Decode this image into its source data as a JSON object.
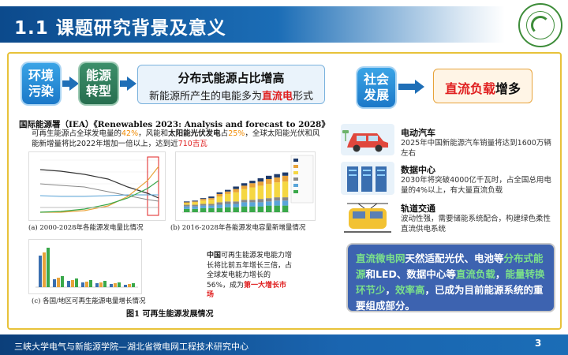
{
  "header": {
    "title": "1.1 课题研究背景及意义"
  },
  "left_flow": {
    "pill1": "环境污染",
    "pill2": "能源转型",
    "box_line1": "分布式能源占比增高",
    "box_line2_a": "新能源所产生的电能多为",
    "box_line2_red": "直流电",
    "box_line2_b": "形式"
  },
  "right_flow": {
    "pill": "社会发展",
    "box_red": "直流负载",
    "box_black": "增多"
  },
  "source": "国际能源署（IEA）《Renewables 2023: Analysis and forecast to 2028》",
  "paragraph": {
    "p1": "可再生能源占全球发电量的",
    "v1": "42%",
    "p2": "，风能和",
    "p3": "太阳能光伏发电",
    "p4": "占",
    "v2": "25%",
    "p5": "，全球太阳能光伏和风能新增量将比2022年增加一倍以上，达到近",
    "v3": "710吉瓦"
  },
  "captions": {
    "a": "(a) 2000-2028年各能源发电量比情况",
    "b": "(b) 2016-2028年各能源发电容量新增量情况",
    "c": "(c) 各国/地区可再生能源电量增长情况",
    "fig": "图1 可再生能源发展情况"
  },
  "note": {
    "bold": "中国",
    "t1": "可再生能源发电能力增长将比前五年增长三倍，占全球发电能力增长的",
    "v": "56%",
    "t2": "，成为",
    "red": "第一大增长市场"
  },
  "items": [
    {
      "title": "电动汽车",
      "text": "2025年中国新能源汽车销量将达到1600万辆左右"
    },
    {
      "title": "数据中心",
      "text": "2030年将突破4000亿千瓦时，占全国总用电量的4%以上，有大量直流负载"
    },
    {
      "title": "轨道交通",
      "text": "波动性强，需要储能系统配合，构建绿色柔性直流供电系统"
    }
  ],
  "summary": {
    "a": "直流微电网",
    "b": "天然适配光伏、电池等",
    "c": "分布式能源",
    "d": "和LED、数据中心等",
    "e": "直流负载",
    "f": "，",
    "g": "能量转换环节少",
    "h": "，",
    "i": "效率高",
    "j": "，已成为目前能源系统的重要组成部分。"
  },
  "footer": {
    "text": "三峡大学电气与新能源学院—湖北省微电网工程技术研究中心",
    "page": "3"
  },
  "colors": {
    "brand": "#1b6db6",
    "frame": "#e8c23a",
    "accent_red": "#e02020",
    "summary_bg": "#3d63b0"
  }
}
